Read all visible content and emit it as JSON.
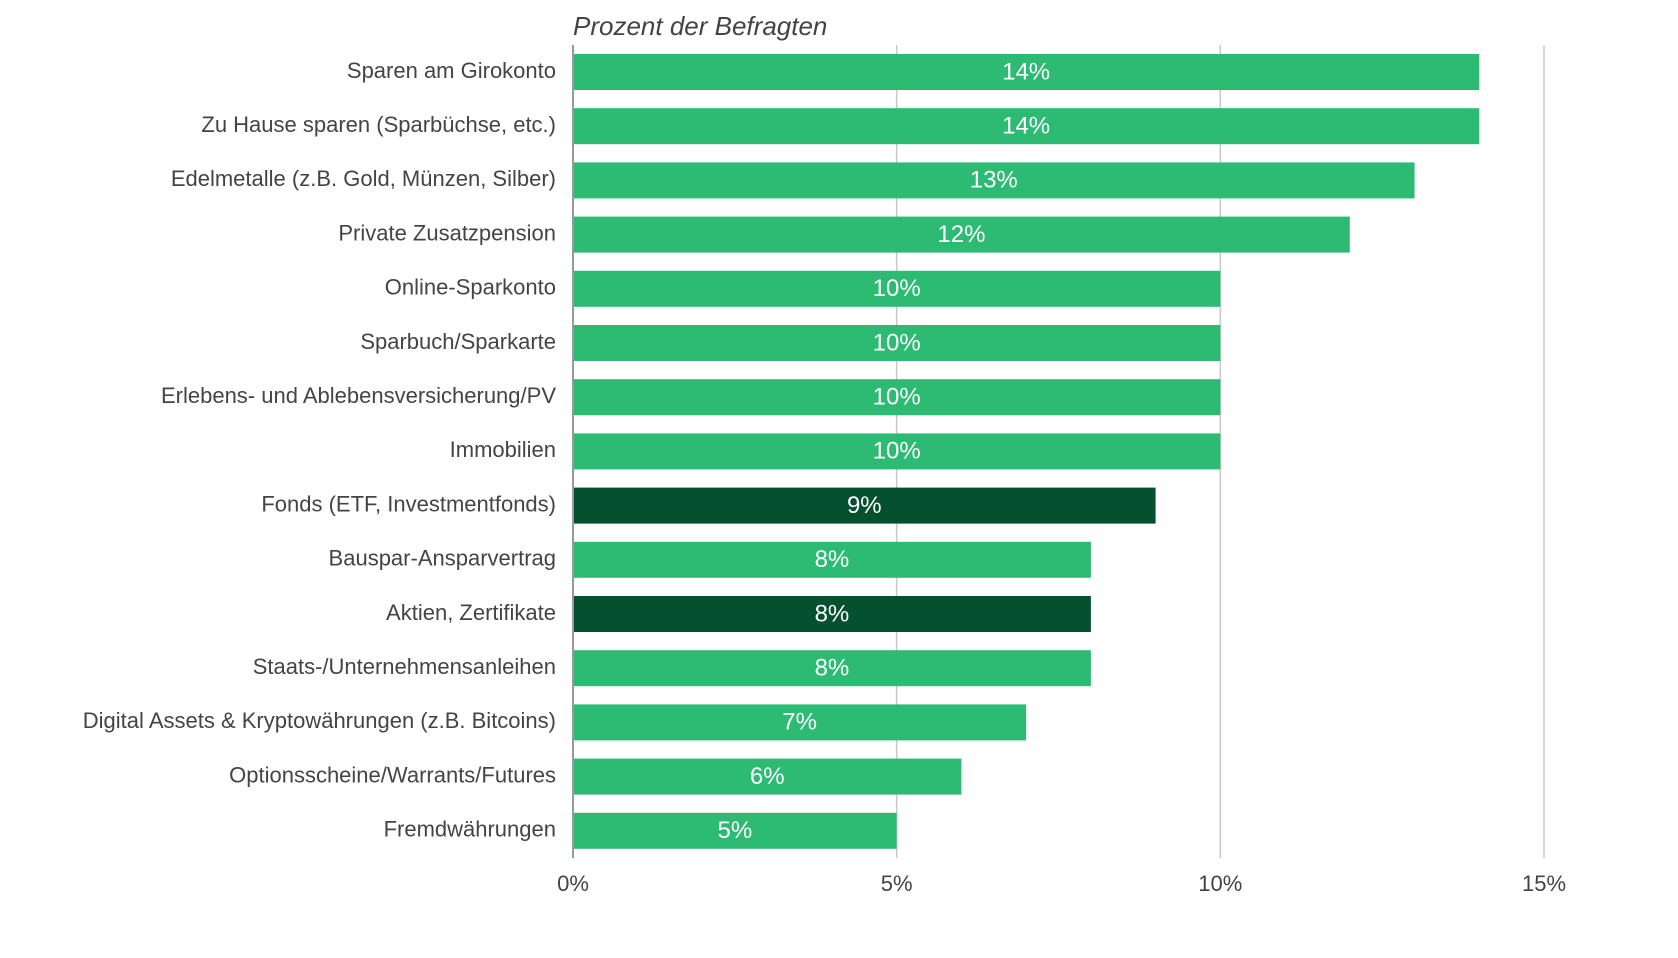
{
  "chart_data": {
    "type": "hbar",
    "title": "Prozent der Befragten",
    "categories": [
      "Sparen am Girokonto",
      "Zu Hause sparen (Sparbüchse, etc.)",
      "Edelmetalle (z.B. Gold, Münzen, Silber)",
      "Private Zusatzpension",
      "Online-Sparkonto",
      "Sparbuch/Sparkarte",
      "Erlebens- und Ablebensversicherung/PV",
      "Immobilien",
      "Fonds (ETF, Investmentfonds)",
      "Bauspar-Ansparvertrag",
      "Aktien, Zertifikate",
      "Staats-/Unternehmensanleihen",
      "Digital Assets & Kryptowährungen (z.B. Bitcoins)",
      "Optionsscheine/Warrants/Futures",
      "Fremdwährungen"
    ],
    "values": [
      14,
      14,
      13,
      12,
      10,
      10,
      10,
      10,
      9,
      8,
      8,
      8,
      7,
      6,
      5
    ],
    "value_labels": [
      "14%",
      "14%",
      "13%",
      "12%",
      "10%",
      "10%",
      "10%",
      "10%",
      "9%",
      "8%",
      "8%",
      "8%",
      "7%",
      "6%",
      "5%"
    ],
    "colors": [
      "#2dbb74",
      "#2dbb74",
      "#2dbb74",
      "#2dbb74",
      "#2dbb74",
      "#2dbb74",
      "#2dbb74",
      "#2dbb74",
      "#04502f",
      "#2dbb74",
      "#04502f",
      "#2dbb74",
      "#2dbb74",
      "#2dbb74",
      "#2dbb74"
    ],
    "xlim": [
      0,
      15
    ],
    "xticks": [
      {
        "value": 0,
        "label": "0%"
      },
      {
        "value": 5,
        "label": "5%"
      },
      {
        "value": 10,
        "label": "10%"
      },
      {
        "value": 15,
        "label": "15%"
      }
    ],
    "grid": true
  }
}
